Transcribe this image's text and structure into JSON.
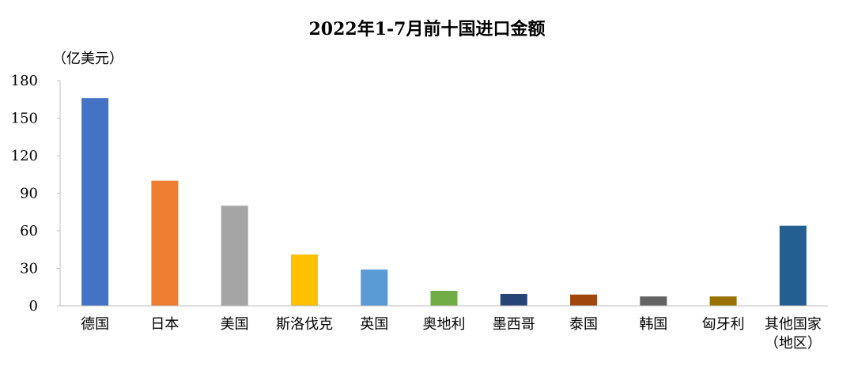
{
  "chart_data": {
    "type": "bar",
    "title": "2022年1-7月前十国进口金额",
    "y_label": "（亿美元）",
    "categories": [
      "德国",
      "日本",
      "美国",
      "斯洛伐克",
      "英国",
      "奥地利",
      "墨西哥",
      "泰国",
      "韩国",
      "匈牙利",
      "其他国家（地区）"
    ],
    "values": [
      166,
      100,
      80,
      41,
      29,
      12,
      9.5,
      9,
      7.5,
      7.5,
      64
    ],
    "colors": [
      "#4472c4",
      "#ed7d31",
      "#a5a5a5",
      "#ffc000",
      "#5b9bd5",
      "#70ad47",
      "#264478",
      "#9e480e",
      "#636363",
      "#997300",
      "#255e91"
    ],
    "ylim": [
      0,
      180
    ],
    "yticks": [
      0,
      30,
      60,
      90,
      120,
      150,
      180
    ],
    "grid": false
  }
}
